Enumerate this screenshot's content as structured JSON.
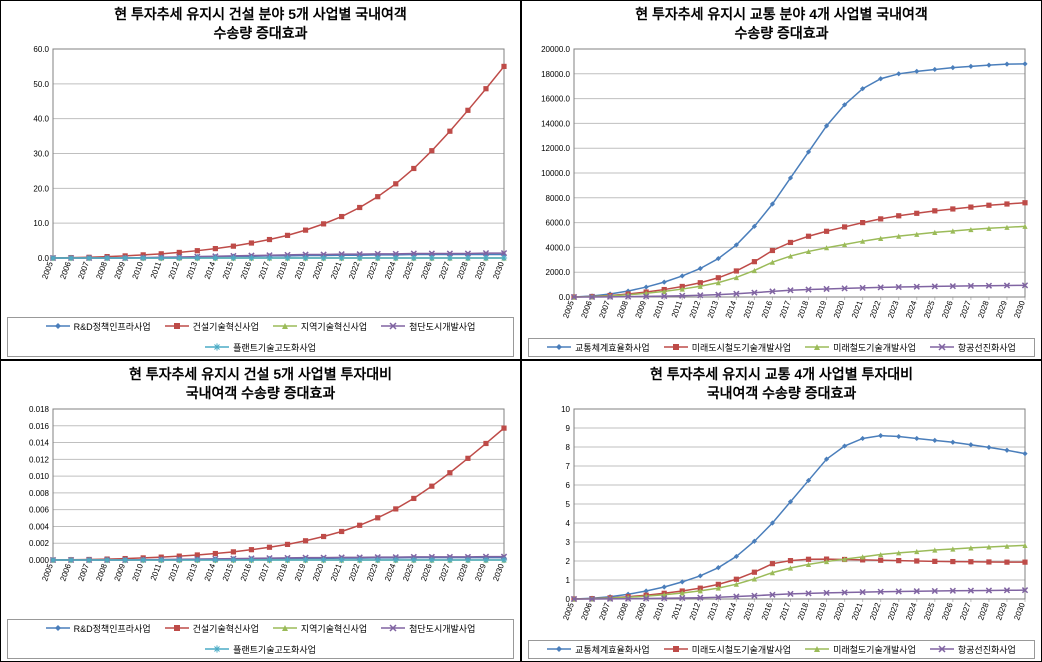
{
  "years": [
    2005,
    2006,
    2007,
    2008,
    2009,
    2010,
    2011,
    2012,
    2013,
    2014,
    2015,
    2016,
    2017,
    2018,
    2019,
    2020,
    2021,
    2022,
    2023,
    2024,
    2025,
    2026,
    2027,
    2028,
    2029,
    2030
  ],
  "colors": {
    "blue": "#4a7ebb",
    "red": "#be4b48",
    "green": "#9bbb59",
    "purple": "#8064a2",
    "teal": "#4bacc6",
    "grid": "#bfbfbf",
    "axis": "#808080",
    "text": "#000000",
    "bg": "#ffffff",
    "legend_border": "#999999"
  },
  "markers": {
    "blue": "diamond",
    "red": "square",
    "green": "triangle",
    "purple": "x",
    "teal": "star"
  },
  "font": {
    "title_size": 14,
    "axis_size": 8,
    "legend_size": 9,
    "title_weight": "bold"
  },
  "chart1": {
    "title1": "현 투자추세 유지시 건설 분야 5개 사업별 국내여객",
    "title2": "수송량 증대효과",
    "ylim": [
      0,
      60
    ],
    "ytick_step": 10,
    "ytick_decimals": 1,
    "series": [
      {
        "key": "blue",
        "label": "R&D정책인프라사업",
        "y": [
          0,
          0,
          0,
          0,
          0,
          0,
          0,
          0,
          0.4,
          0.4,
          0.5,
          0.5,
          0.6,
          0.6,
          0.7,
          0.7,
          0.8,
          0.8,
          0.9,
          0.9,
          1,
          1,
          1,
          1,
          1,
          1
        ]
      },
      {
        "key": "red",
        "label": "건설기술혁신사업",
        "y": [
          0,
          0.1,
          0.2,
          0.4,
          0.6,
          0.9,
          1.2,
          1.6,
          2.1,
          2.7,
          3.4,
          4.3,
          5.3,
          6.5,
          8,
          9.8,
          11.9,
          14.5,
          17.6,
          21.3,
          25.7,
          30.8,
          36.4,
          42.4,
          48.6,
          55
        ]
      },
      {
        "key": "green",
        "label": "지역기술혁신사업",
        "y": [
          0,
          0,
          0,
          0,
          0,
          0,
          0,
          0,
          0,
          0,
          0,
          0,
          0,
          0,
          0,
          0,
          0,
          0,
          0,
          0,
          0,
          0,
          0,
          0,
          0,
          0
        ]
      },
      {
        "key": "purple",
        "label": "첨단도시개발사업",
        "y": [
          0,
          0,
          0,
          0,
          0,
          0.1,
          0.2,
          0.3,
          0.4,
          0.5,
          0.6,
          0.7,
          0.8,
          0.9,
          1,
          1,
          1.1,
          1.1,
          1.2,
          1.2,
          1.3,
          1.3,
          1.3,
          1.3,
          1.4,
          1.4
        ]
      },
      {
        "key": "teal",
        "label": "플랜트기술고도화사업",
        "y": [
          0,
          0,
          0,
          0,
          0,
          0,
          0,
          0,
          0,
          0,
          0,
          0,
          0,
          0,
          0,
          0,
          0,
          0,
          0,
          0,
          0,
          0,
          0,
          0,
          0,
          0
        ]
      }
    ]
  },
  "chart2": {
    "title1": "현 투자추세 유지시 교통 분야 4개 사업별 국내여객",
    "title2": "수송량 증대효과",
    "ylim": [
      0,
      20000
    ],
    "ytick_step": 2000,
    "ytick_decimals": 1,
    "series": [
      {
        "key": "blue",
        "label": "교통체계효율화사업",
        "y": [
          0,
          80,
          240,
          480,
          800,
          1200,
          1700,
          2300,
          3100,
          4200,
          5700,
          7500,
          9600,
          11700,
          13800,
          15500,
          16800,
          17600,
          18000,
          18200,
          18350,
          18500,
          18600,
          18700,
          18780,
          18800
        ]
      },
      {
        "key": "red",
        "label": "미래도시철도기술개발사업",
        "y": [
          0,
          40,
          120,
          240,
          400,
          600,
          850,
          1150,
          1550,
          2100,
          2850,
          3750,
          4400,
          4900,
          5300,
          5650,
          6000,
          6300,
          6550,
          6750,
          6950,
          7100,
          7250,
          7400,
          7500,
          7600
        ]
      },
      {
        "key": "green",
        "label": "미래철도기술개발사업",
        "y": [
          0,
          30,
          90,
          180,
          300,
          450,
          640,
          865,
          1160,
          1575,
          2140,
          2810,
          3300,
          3675,
          3975,
          4230,
          4500,
          4725,
          4910,
          5060,
          5210,
          5320,
          5440,
          5540,
          5620,
          5700
        ]
      },
      {
        "key": "purple",
        "label": "항공선진화사업",
        "y": [
          0,
          5,
          15,
          30,
          50,
          75,
          105,
          140,
          190,
          260,
          350,
          450,
          540,
          600,
          650,
          695,
          735,
          775,
          805,
          830,
          855,
          875,
          895,
          910,
          925,
          940
        ]
      }
    ]
  },
  "chart3": {
    "title1": "현 투자추세 유지시 건설 5개 사업별 투자대비",
    "title2": "국내여객 수송량 증대효과",
    "ylim": [
      0,
      0.018
    ],
    "ytick_step": 0.002,
    "ytick_decimals": 3,
    "series": [
      {
        "key": "blue",
        "label": "R&D정책인프라사업",
        "y": [
          0,
          0,
          0,
          0,
          0,
          0,
          0,
          0,
          0.00011,
          0.00011,
          0.00014,
          0.00014,
          0.00017,
          0.00017,
          0.0002,
          0.0002,
          0.00023,
          0.00023,
          0.00026,
          0.00026,
          0.00028,
          0.00028,
          0.00028,
          0.00028,
          0.00028,
          0.00028
        ]
      },
      {
        "key": "red",
        "label": "건설기술혁신사업",
        "y": [
          0,
          3e-05,
          6e-05,
          0.00011,
          0.00017,
          0.00025,
          0.00034,
          0.00046,
          0.0006,
          0.00077,
          0.00097,
          0.00123,
          0.00152,
          0.00186,
          0.00229,
          0.0028,
          0.0034,
          0.00414,
          0.00503,
          0.00609,
          0.00734,
          0.0088,
          0.0104,
          0.01212,
          0.01389,
          0.01572
        ]
      },
      {
        "key": "green",
        "label": "지역기술혁신사업",
        "y": [
          0,
          0,
          0,
          0,
          0,
          0,
          0,
          0,
          0,
          0,
          0,
          0,
          0,
          0,
          0,
          0,
          0,
          0,
          0,
          0,
          0,
          0,
          0,
          0,
          0,
          0
        ]
      },
      {
        "key": "purple",
        "label": "첨단도시개발사업",
        "y": [
          0,
          0,
          0,
          0,
          0,
          3e-05,
          6e-05,
          9e-05,
          0.00011,
          0.00014,
          0.00017,
          0.0002,
          0.00023,
          0.00025,
          0.00028,
          0.00028,
          0.00031,
          0.00031,
          0.00034,
          0.00034,
          0.00037,
          0.00037,
          0.00037,
          0.00037,
          0.0004,
          0.0004
        ]
      },
      {
        "key": "teal",
        "label": "플랜트기술고도화사업",
        "y": [
          0,
          0,
          0,
          0,
          0,
          0,
          0,
          0,
          0,
          0,
          0,
          0,
          0,
          0,
          0,
          0,
          0,
          0,
          0,
          0,
          0,
          0,
          0,
          0,
          0,
          0
        ]
      }
    ]
  },
  "chart4": {
    "title1": "현 투자추세 유지시 교통 4개 사업별 투자대비",
    "title2": "국내여객 수송량 증대효과",
    "ylim": [
      0,
      10
    ],
    "ytick_step": 1,
    "ytick_decimals": 0,
    "series": [
      {
        "key": "blue",
        "label": "교통체계효율화사업",
        "y": [
          0,
          0.04,
          0.12,
          0.25,
          0.42,
          0.63,
          0.9,
          1.22,
          1.65,
          2.24,
          3.04,
          4,
          5.12,
          6.24,
          7.36,
          8.05,
          8.45,
          8.6,
          8.55,
          8.45,
          8.35,
          8.25,
          8.12,
          7.98,
          7.83,
          7.65
        ]
      },
      {
        "key": "red",
        "label": "미래도시철도기술개발사업",
        "y": [
          0,
          0.02,
          0.06,
          0.12,
          0.2,
          0.3,
          0.42,
          0.57,
          0.77,
          1.04,
          1.41,
          1.86,
          2.02,
          2.09,
          2.1,
          2.08,
          2.06,
          2.04,
          2.02,
          2,
          1.98,
          1.97,
          1.96,
          1.95,
          1.94,
          1.94
        ]
      },
      {
        "key": "green",
        "label": "미래철도기술개발사업",
        "y": [
          0,
          0.015,
          0.045,
          0.09,
          0.15,
          0.225,
          0.318,
          0.43,
          0.575,
          0.78,
          1.06,
          1.39,
          1.63,
          1.82,
          1.97,
          2.1,
          2.22,
          2.34,
          2.43,
          2.5,
          2.58,
          2.63,
          2.69,
          2.74,
          2.78,
          2.82
        ]
      },
      {
        "key": "purple",
        "label": "항공선진화사업",
        "y": [
          0,
          0.002,
          0.007,
          0.015,
          0.025,
          0.037,
          0.052,
          0.069,
          0.094,
          0.129,
          0.173,
          0.223,
          0.267,
          0.297,
          0.322,
          0.344,
          0.364,
          0.384,
          0.398,
          0.411,
          0.423,
          0.433,
          0.443,
          0.45,
          0.458,
          0.465
        ]
      }
    ]
  }
}
